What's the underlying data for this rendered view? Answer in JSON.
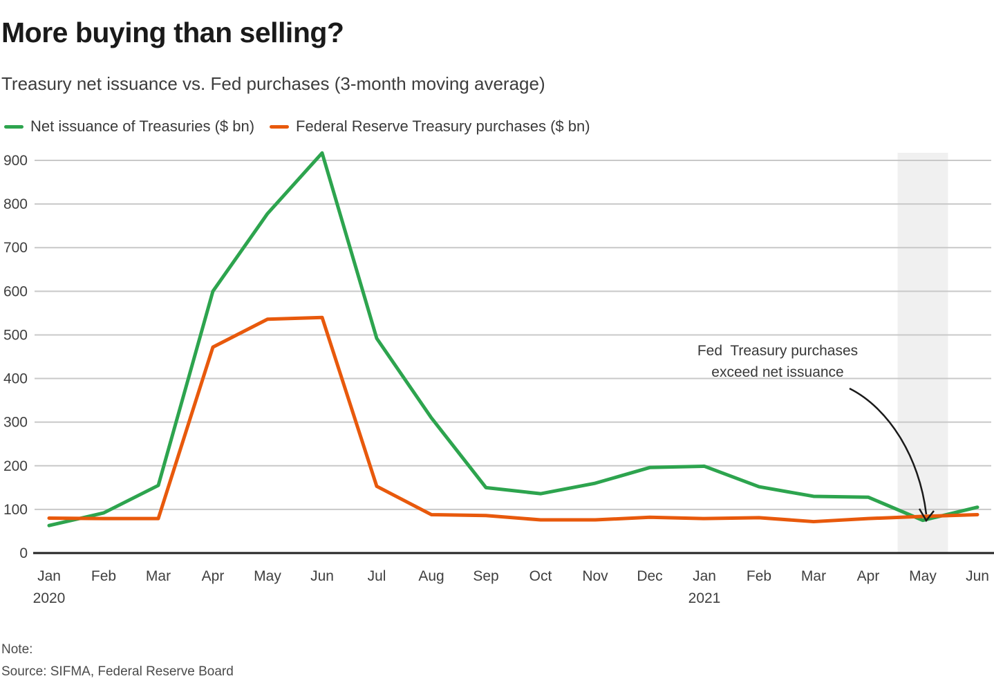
{
  "header": {
    "title": "More buying than selling?",
    "subtitle": "Treasury net issuance vs. Fed purchases (3-month moving average)"
  },
  "legend": {
    "items": [
      {
        "label": "Net issuance of Treasuries ($ bn)",
        "color": "#2da44e"
      },
      {
        "label": "Federal Reserve Treasury purchases ($ bn)",
        "color": "#e8590c"
      }
    ]
  },
  "annotation": {
    "line1": "Fed  Treasury purchases",
    "line2": "exceed net issuance"
  },
  "footer": {
    "note_label": "Note:",
    "source": "Source: SIFMA, Federal Reserve Board"
  },
  "chart_data": {
    "type": "line",
    "title": "More buying than selling?",
    "subtitle": "Treasury net issuance vs. Fed purchases (3-month moving average)",
    "categories": [
      "Jan 2020",
      "Feb 2020",
      "Mar 2020",
      "Apr 2020",
      "May 2020",
      "Jun 2020",
      "Jul 2020",
      "Aug 2020",
      "Sep 2020",
      "Oct 2020",
      "Nov 2020",
      "Dec 2020",
      "Jan 2021",
      "Feb 2021",
      "Mar 2021",
      "Apr 2021",
      "May 2021",
      "Jun 2021"
    ],
    "x_tick_labels": [
      "Jan",
      "Feb",
      "Mar",
      "Apr",
      "May",
      "Jun",
      "Jul",
      "Aug",
      "Sep",
      "Oct",
      "Nov",
      "Dec",
      "Jan",
      "Feb",
      "Mar",
      "Apr",
      "May",
      "Jun"
    ],
    "x_year_labels": [
      {
        "index": 0,
        "label": "2020"
      },
      {
        "index": 12,
        "label": "2021"
      }
    ],
    "series": [
      {
        "name": "Net issuance of Treasuries ($ bn)",
        "color": "#2da44e",
        "values": [
          63,
          92,
          155,
          600,
          778,
          917,
          492,
          310,
          150,
          136,
          160,
          196,
          199,
          152,
          130,
          128,
          75,
          105
        ]
      },
      {
        "name": "Federal Reserve Treasury purchases ($ bn)",
        "color": "#e8590c",
        "values": [
          80,
          79,
          79,
          472,
          536,
          540,
          153,
          88,
          86,
          76,
          76,
          82,
          79,
          81,
          72,
          79,
          84,
          88
        ]
      }
    ],
    "ylim": [
      0,
      900
    ],
    "yticks": [
      0,
      100,
      200,
      300,
      400,
      500,
      600,
      700,
      800,
      900
    ],
    "grid": "horizontal",
    "legend_position": "top-left",
    "highlight_band": {
      "category": "May 2021",
      "color": "#f0f0f0"
    },
    "annotation": {
      "text": "Fed Treasury purchases exceed net issuance",
      "target_category": "May 2021"
    }
  }
}
